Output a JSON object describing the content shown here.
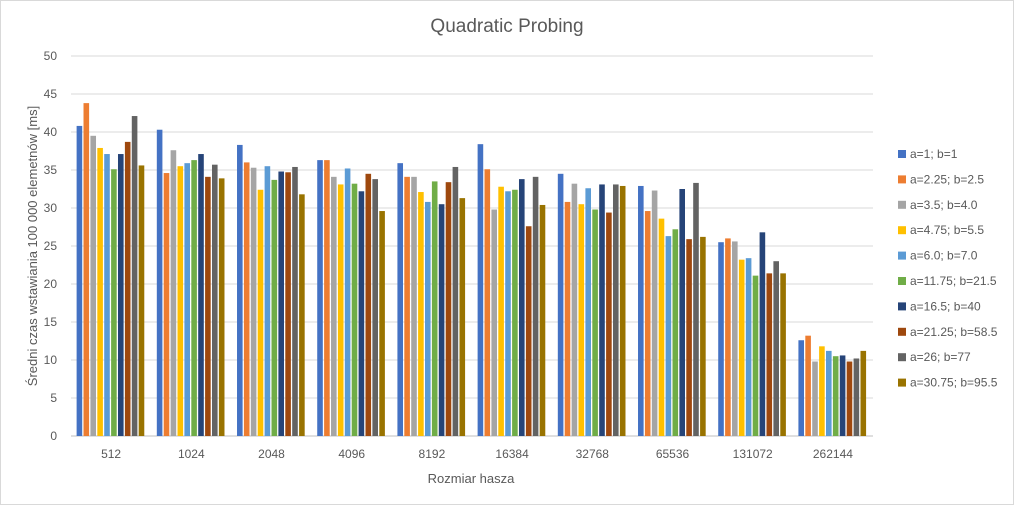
{
  "chart_data": {
    "type": "bar",
    "title": "Quadratic Probing",
    "xlabel": "Rozmiar hasza",
    "ylabel": "Średni czas wstawiania 100 000 elemetnów [ms]",
    "ylim": [
      0,
      50
    ],
    "yticks": [
      "0",
      "5",
      "10",
      "15",
      "20",
      "25",
      "30",
      "35",
      "40",
      "45",
      "50"
    ],
    "grid": true,
    "legend_position": "right",
    "categories": [
      "512",
      "1024",
      "2048",
      "4096",
      "8192",
      "16384",
      "32768",
      "65536",
      "131072",
      "262144"
    ],
    "series": [
      {
        "name": "a=1; b=1",
        "color": "#4472c4",
        "values": [
          40.8,
          40.3,
          38.3,
          36.3,
          35.9,
          38.4,
          34.5,
          32.9,
          25.5,
          12.6
        ]
      },
      {
        "name": "a=2.25; b=2.5",
        "color": "#ed7d31",
        "values": [
          43.8,
          34.6,
          36.0,
          36.3,
          34.1,
          35.1,
          30.8,
          29.6,
          26.0,
          13.2
        ]
      },
      {
        "name": "a=3.5; b=4.0",
        "color": "#a5a5a5",
        "values": [
          39.5,
          37.6,
          35.3,
          34.1,
          34.1,
          29.8,
          33.2,
          32.3,
          25.6,
          9.8
        ]
      },
      {
        "name": "a=4.75; b=5.5",
        "color": "#ffc000",
        "values": [
          37.9,
          35.5,
          32.4,
          33.1,
          32.1,
          32.8,
          30.5,
          28.6,
          23.2,
          11.8
        ]
      },
      {
        "name": "a=6.0; b=7.0",
        "color": "#5b9bd5",
        "values": [
          37.1,
          35.9,
          35.5,
          35.2,
          30.8,
          32.2,
          32.6,
          26.3,
          23.4,
          11.2
        ]
      },
      {
        "name": "a=11.75; b=21.5",
        "color": "#70ad47",
        "values": [
          35.1,
          36.3,
          33.7,
          33.2,
          33.5,
          32.4,
          29.8,
          27.2,
          21.1,
          10.5
        ]
      },
      {
        "name": "a=16.5; b=40",
        "color": "#264478",
        "values": [
          37.1,
          37.1,
          34.8,
          32.2,
          30.5,
          33.8,
          33.1,
          32.5,
          26.8,
          10.6
        ]
      },
      {
        "name": "a=21.25; b=58.5",
        "color": "#9e480e",
        "values": [
          38.7,
          34.1,
          34.7,
          34.5,
          33.4,
          27.6,
          29.4,
          25.9,
          21.4,
          9.8
        ]
      },
      {
        "name": "a=26; b=77",
        "color": "#636363",
        "values": [
          42.1,
          35.7,
          35.4,
          33.8,
          35.4,
          34.1,
          33.1,
          33.3,
          23.0,
          10.2
        ]
      },
      {
        "name": "a=30.75; b=95.5",
        "color": "#997300",
        "values": [
          35.6,
          33.9,
          31.8,
          29.6,
          31.3,
          30.4,
          32.9,
          26.2,
          21.4,
          11.2
        ]
      }
    ]
  }
}
